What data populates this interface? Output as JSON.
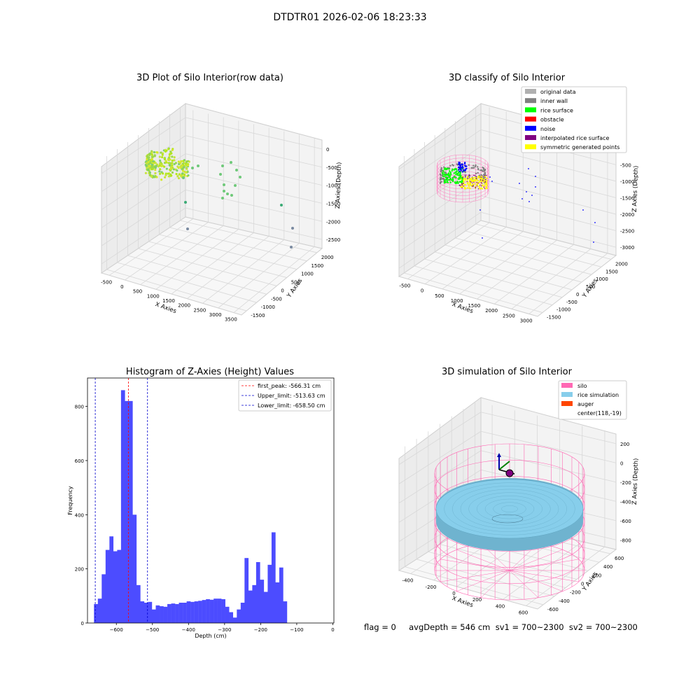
{
  "suptitle": "DTDTR01 2026-02-06 18:23:33",
  "colors": {
    "hist_bar": "#4c4cff",
    "peak_line": "#ff0000",
    "limit_line": "#0000cc",
    "silo": "#ff69b4",
    "rice": "#87ceeb",
    "auger": "#ff4500",
    "orig": "#b0b0b0",
    "wall": "#808080",
    "surface": "#00ff00",
    "obstacle": "#ff0000",
    "noise": "#0000ff",
    "interp": "#800080",
    "sym": "#ffff00"
  },
  "chart_data": [
    {
      "type": "scatter",
      "title": "3D Plot of Silo Interior(row data)",
      "xlabel": "X Axies",
      "ylabel": "Y Axies",
      "zlabel": "Z Axies (Depth)",
      "x_ticks": [
        "-500",
        "0",
        "500",
        "1000",
        "1500",
        "2000",
        "2500",
        "3000",
        "3500"
      ],
      "y_ticks": [
        "-1500",
        "-1000",
        "-500",
        "0",
        "500",
        "1000",
        "1500",
        "2000"
      ],
      "z_ticks": [
        "0",
        "-500",
        "-1000",
        "-1500",
        "-2000",
        "-2500"
      ]
    },
    {
      "type": "scatter",
      "title": "3D classify of Silo Interior",
      "xlabel": "X Axies",
      "ylabel": "Y Axies",
      "zlabel": "Z Axies (Depth)",
      "x_ticks": [
        "-500",
        "0",
        "500",
        "1000",
        "1500",
        "2000",
        "2500",
        "3000"
      ],
      "y_ticks": [
        "-1500",
        "-1000",
        "-500",
        "0",
        "500",
        "1000",
        "1500",
        "2000"
      ],
      "z_ticks": [
        "0",
        "-500",
        "-1000",
        "-1500",
        "-2000",
        "-2500",
        "-3000"
      ],
      "legend": [
        "original data",
        "inner wall",
        "rice surface",
        "obstacle",
        "noise",
        "interpolated rice surface",
        "symmetric generated points"
      ],
      "legend_placement": "top-right"
    },
    {
      "type": "bar",
      "title": "Histogram of Z-Axies (Height) Values",
      "xlabel": "Depth (cm)",
      "ylabel": "Frequency",
      "xlim": [
        -680,
        3
      ],
      "ylim": [
        0,
        905
      ],
      "x_ticks": [
        -600,
        -500,
        -400,
        -300,
        -200,
        -100,
        0
      ],
      "y_ticks": [
        0,
        200,
        400,
        600,
        800
      ],
      "bin_edges_start": -662,
      "bin_width": 10.7,
      "values": [
        70,
        90,
        180,
        270,
        320,
        265,
        270,
        860,
        820,
        820,
        400,
        140,
        80,
        75,
        78,
        50,
        65,
        62,
        60,
        70,
        72,
        70,
        75,
        75,
        80,
        78,
        80,
        82,
        85,
        88,
        86,
        90,
        90,
        88,
        60,
        40,
        20,
        50,
        75,
        240,
        120,
        140,
        225,
        160,
        115,
        215,
        335,
        150,
        205,
        80
      ],
      "vlines": [
        {
          "label": "first_peak: -566.31 cm",
          "x": -566.31,
          "color": "red"
        },
        {
          "label": "Upper_limit: -513.63 cm",
          "x": -513.63,
          "color": "blue"
        },
        {
          "label": "Lower_limit: -658.50 cm",
          "x": -658.5,
          "color": "blue"
        }
      ],
      "legend_placement": "top-right"
    },
    {
      "type": "scatter",
      "title": "3D simulation of Silo Interior",
      "xlabel": "X Axies",
      "ylabel": "Y Axies",
      "zlabel": "Z Axies (Depth)",
      "x_ticks": [
        "-400",
        "-200",
        "0",
        "200",
        "400",
        "600"
      ],
      "y_ticks": [
        "-600",
        "-400",
        "-200",
        "0",
        "200",
        "400",
        "600"
      ],
      "z_ticks": [
        "200",
        "0",
        "-200",
        "-400",
        "-600",
        "-800"
      ],
      "legend": [
        "silo",
        "rice simulation",
        "auger",
        "center(118,-19)"
      ],
      "legend_placement": "top-right"
    }
  ],
  "footer": "flag = 0     avgDepth = 546 cm  sv1 = 700~2300  sv2 = 700~2300"
}
